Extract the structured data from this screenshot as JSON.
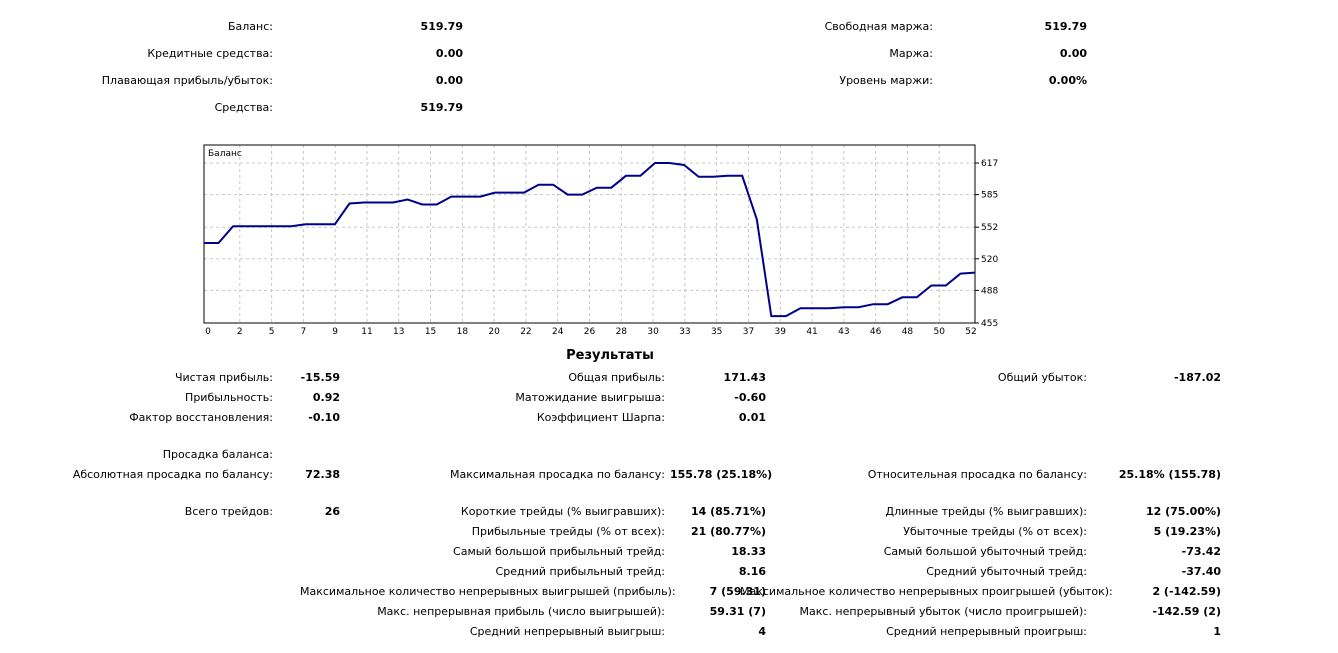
{
  "summary": {
    "balance": {
      "label": "Баланс:",
      "value": "519.79"
    },
    "credit": {
      "label": "Кредитные средства:",
      "value": "0.00"
    },
    "floating": {
      "label": "Плавающая прибыль/убыток:",
      "value": "0.00"
    },
    "equity": {
      "label": "Средства:",
      "value": "519.79"
    },
    "free_margin": {
      "label": "Свободная маржа:",
      "value": "519.79"
    },
    "margin": {
      "label": "Маржа:",
      "value": "0.00"
    },
    "margin_level": {
      "label": "Уровень маржи:",
      "value": "0.00%"
    }
  },
  "chart_data": {
    "type": "line",
    "title": "Баланс",
    "x_ticks": [
      "0",
      "2",
      "5",
      "7",
      "9",
      "11",
      "13",
      "15",
      "18",
      "20",
      "22",
      "24",
      "26",
      "28",
      "30",
      "33",
      "35",
      "37",
      "39",
      "41",
      "43",
      "46",
      "48",
      "50",
      "52"
    ],
    "y_ticks": [
      "617",
      "585",
      "552",
      "520",
      "488",
      "455"
    ],
    "ylim": [
      455,
      617
    ],
    "xlim": [
      0,
      53
    ],
    "grid": true,
    "line_color": "#00008b",
    "series": [
      {
        "x": [
          0,
          1,
          2,
          3,
          4,
          5,
          6,
          7,
          8,
          9,
          10,
          11,
          12,
          13,
          14,
          15,
          16,
          17,
          18,
          19,
          20,
          21,
          22,
          23,
          24,
          25,
          26,
          27,
          28,
          29,
          30,
          31,
          32,
          33,
          34,
          35,
          36,
          37,
          38,
          39,
          40,
          41,
          42,
          43,
          44,
          45,
          46,
          47,
          48,
          49,
          50,
          51,
          52,
          53
        ],
        "values": [
          536,
          536,
          553,
          553,
          553,
          553,
          553,
          555,
          555,
          555,
          576,
          577,
          577,
          577,
          580,
          575,
          575,
          583,
          583,
          583,
          587,
          587,
          587,
          595,
          595,
          585,
          585,
          592,
          592,
          604,
          604,
          617,
          617,
          615,
          603,
          603,
          604,
          604,
          560,
          462,
          462,
          470,
          470,
          470,
          471,
          471,
          474,
          474,
          481,
          481,
          493,
          493,
          505,
          506
        ]
      }
    ]
  },
  "results": {
    "heading": "Результаты",
    "net_profit": {
      "label": "Чистая прибыль:",
      "value": "-15.59"
    },
    "profitability": {
      "label": "Прибыльность:",
      "value": "0.92"
    },
    "recovery": {
      "label": "Фактор восстановления:",
      "value": "-0.10"
    },
    "gross_profit": {
      "label": "Общая прибыль:",
      "value": "171.43"
    },
    "expected_payoff": {
      "label": "Матожидание выигрыша:",
      "value": "-0.60"
    },
    "sharpe": {
      "label": "Коэффициент Шарпа:",
      "value": "0.01"
    },
    "gross_loss": {
      "label": "Общий убыток:",
      "value": "-187.02"
    },
    "balance_drawdown": {
      "label": "Просадка баланса:"
    },
    "abs_drawdown": {
      "label": "Абсолютная просадка по балансу:",
      "value": "72.38"
    },
    "max_drawdown": {
      "label": "Максимальная просадка по балансу:",
      "value": "155.78 (25.18%)"
    },
    "rel_drawdown": {
      "label": "Относительная просадка по балансу:",
      "value": "25.18% (155.78)"
    },
    "total_trades": {
      "label": "Всего трейдов:",
      "value": "26"
    },
    "short_trades": {
      "label": "Короткие трейды (% выигравших):",
      "value": "14 (85.71%)"
    },
    "profit_trades": {
      "label": "Прибыльные трейды (% от всех):",
      "value": "21 (80.77%)"
    },
    "largest_profit": {
      "label": "Самый большой прибыльный трейд:",
      "value": "18.33"
    },
    "avg_profit": {
      "label": "Средний прибыльный трейд:",
      "value": "8.16"
    },
    "max_cons_wins": {
      "label": "Максимальное количество непрерывных выигрышей (прибыль):",
      "value": "7 (59.31)"
    },
    "max_cons_profit": {
      "label": "Макс. непрерывная прибыль (число выигрышей):",
      "value": "59.31 (7)"
    },
    "avg_cons_wins": {
      "label": "Средний непрерывный выигрыш:",
      "value": "4"
    },
    "long_trades": {
      "label": "Длинные трейды (% выигравших):",
      "value": "12 (75.00%)"
    },
    "loss_trades": {
      "label": "Убыточные трейды (% от всех):",
      "value": "5 (19.23%)"
    },
    "largest_loss": {
      "label": "Самый большой убыточный трейд:",
      "value": "-73.42"
    },
    "avg_loss": {
      "label": "Средний убыточный трейд:",
      "value": "-37.40"
    },
    "max_cons_losses": {
      "label": "Максимальное количество непрерывных проигрышей (убыток):",
      "value": "2 (-142.59)"
    },
    "max_cons_loss": {
      "label": "Макс. непрерывный убыток (число проигрышей):",
      "value": "-142.59 (2)"
    },
    "avg_cons_losses": {
      "label": "Средний непрерывный проигрыш:",
      "value": "1"
    }
  }
}
